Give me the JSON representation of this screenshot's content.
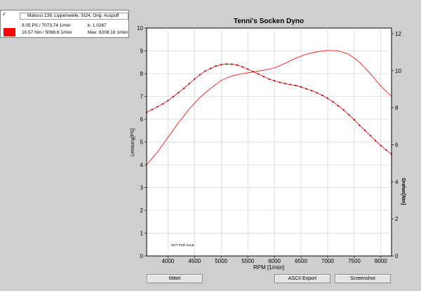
{
  "legend": {
    "checkbox": "✓",
    "run_name": "Malossi 139, Lippenwelle, SI24, Orig. Auspuff",
    "power_reading": "9.05 PS / 7073.74 1/min",
    "k_value": "k: 1.0267",
    "torque_reading": "10.57 Nm / 5086.6 1/min",
    "max_rpm": "Max: 8208.18 1/min",
    "swatch_color": "#ff0000"
  },
  "buttons": {
    "mittel": "Mittel",
    "ascii_export": "ASCII Export",
    "screenshot": "Screenshot"
  },
  "chart_data": {
    "type": "line",
    "title": "Tenni's Socken Dyno",
    "xlabel": "RPM [1/min]",
    "ylabel_left": "Leistung[PS]",
    "ylabel_right": "Drehm[Nm]",
    "watermark": "NOT FOR SALE",
    "xlim": [
      3600,
      8200
    ],
    "ylim_left": [
      0,
      10
    ],
    "ylim_right": [
      0,
      12.3
    ],
    "x_ticks": [
      4000,
      4500,
      5000,
      5500,
      6000,
      6500,
      7000,
      7500,
      8000
    ],
    "y_ticks_left": [
      0,
      1,
      2,
      3,
      4,
      5,
      6,
      7,
      8,
      9,
      10
    ],
    "y_ticks_right": [
      0,
      2,
      4,
      6,
      8,
      10,
      12
    ],
    "line_color": "#ff0000",
    "series": [
      {
        "axis": "left",
        "markers": false,
        "x": [
          3600,
          3800,
          4000,
          4200,
          4400,
          4600,
          4800,
          5000,
          5200,
          5400,
          5600,
          5800,
          6000,
          6200,
          6400,
          6600,
          6800,
          7000,
          7200,
          7400,
          7600,
          7800,
          8000,
          8200
        ],
        "y": [
          4.0,
          4.55,
          5.2,
          5.85,
          6.45,
          6.95,
          7.35,
          7.7,
          7.9,
          8.0,
          8.07,
          8.15,
          8.25,
          8.45,
          8.68,
          8.85,
          8.96,
          9.02,
          9.0,
          8.85,
          8.5,
          8.0,
          7.45,
          7.0
        ]
      },
      {
        "axis": "right",
        "markers": true,
        "x": [
          3600,
          3700,
          3800,
          3900,
          4000,
          4100,
          4200,
          4300,
          4400,
          4500,
          4600,
          4700,
          4800,
          4900,
          5000,
          5100,
          5200,
          5300,
          5400,
          5500,
          5600,
          5700,
          5800,
          5900,
          6000,
          6100,
          6200,
          6300,
          6400,
          6500,
          6600,
          6700,
          6800,
          6900,
          7000,
          7100,
          7200,
          7300,
          7400,
          7500,
          7600,
          7700,
          7800,
          7900,
          8000,
          8100,
          8200
        ],
        "y": [
          7.75,
          7.9,
          8.05,
          8.2,
          8.38,
          8.6,
          8.82,
          9.05,
          9.3,
          9.55,
          9.78,
          9.98,
          10.12,
          10.25,
          10.32,
          10.36,
          10.35,
          10.3,
          10.2,
          10.08,
          9.95,
          9.82,
          9.68,
          9.55,
          9.45,
          9.37,
          9.3,
          9.25,
          9.2,
          9.12,
          9.02,
          8.92,
          8.8,
          8.67,
          8.5,
          8.32,
          8.1,
          7.88,
          7.62,
          7.35,
          7.05,
          6.78,
          6.5,
          6.22,
          5.95,
          5.72,
          5.5
        ]
      }
    ]
  }
}
